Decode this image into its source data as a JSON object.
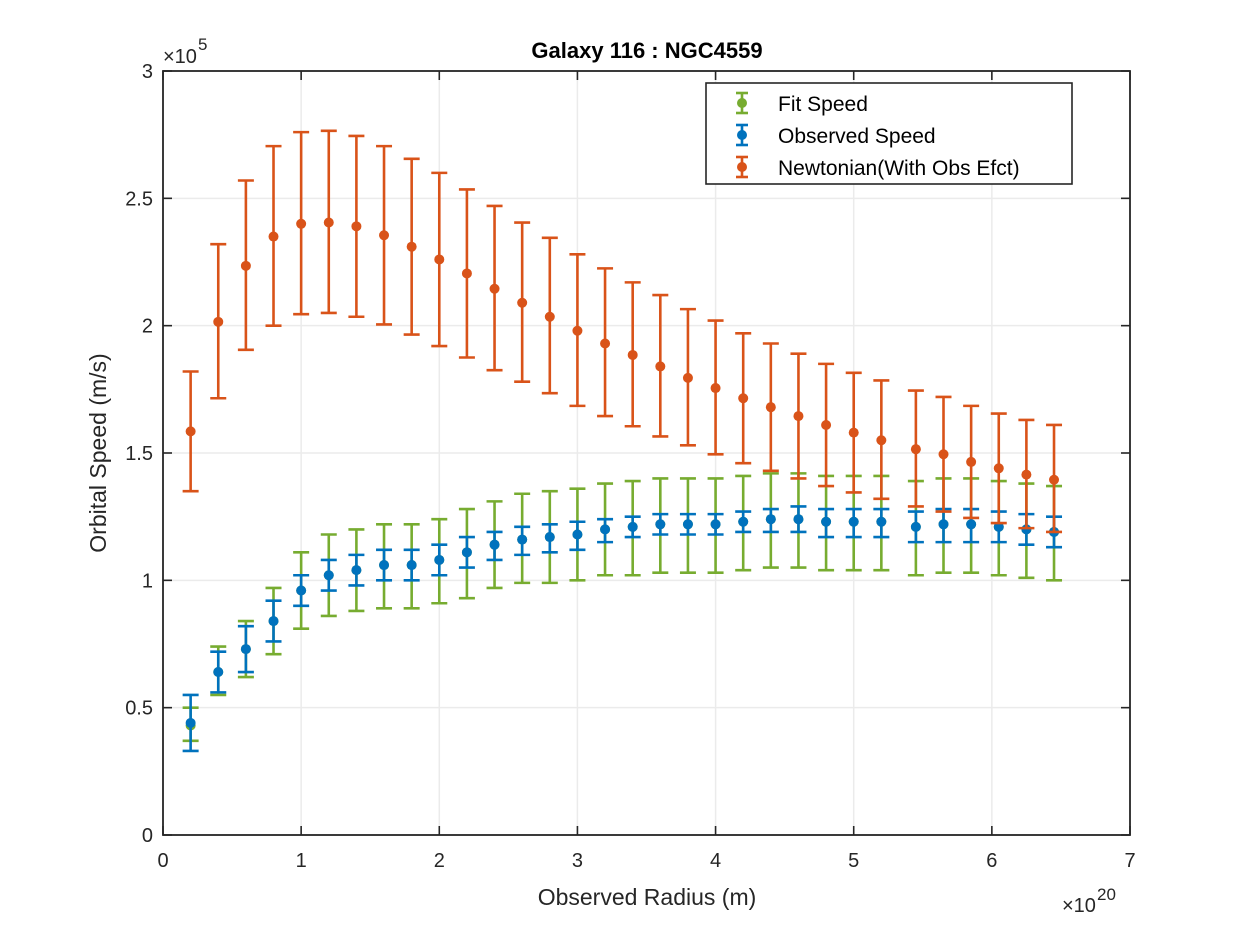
{
  "chart_data": {
    "type": "scatter",
    "title": "Galaxy 116 : NGC4559",
    "xlabel": "Observed Radius (m)",
    "ylabel": "Orbital Speed (m/s)",
    "x_exponent_base": "×10",
    "x_exponent_power": "20",
    "y_exponent_base": "×10",
    "y_exponent_power": "5",
    "xlim": [
      0,
      7
    ],
    "ylim": [
      0,
      3
    ],
    "x_ticks": [
      "0",
      "1",
      "2",
      "3",
      "4",
      "5",
      "6",
      "7"
    ],
    "y_ticks": [
      "0",
      "0.5",
      "1",
      "1.5",
      "2",
      "2.5",
      "3"
    ],
    "grid": true,
    "legend_position": "top-right",
    "x": [
      0.2,
      0.4,
      0.6,
      0.8,
      1.0,
      1.2,
      1.4,
      1.6,
      1.8,
      2.0,
      2.2,
      2.4,
      2.6,
      2.8,
      3.0,
      3.2,
      3.4,
      3.6,
      3.8,
      4.0,
      4.2,
      4.4,
      4.6,
      4.8,
      5.0,
      5.2,
      5.45,
      5.65,
      5.85,
      6.05,
      6.25,
      6.45
    ],
    "series": [
      {
        "name": "Fit Speed",
        "color": "#77AC30",
        "values": [
          0.43,
          0.64,
          0.73,
          0.84,
          0.96,
          1.02,
          1.04,
          1.06,
          1.06,
          1.08,
          1.11,
          1.14,
          1.16,
          1.17,
          1.18,
          1.2,
          1.21,
          1.22,
          1.22,
          1.22,
          1.23,
          1.24,
          1.24,
          1.23,
          1.23,
          1.23,
          1.21,
          1.22,
          1.22,
          1.21,
          1.2,
          1.19
        ],
        "lower": [
          0.37,
          0.55,
          0.62,
          0.71,
          0.81,
          0.86,
          0.88,
          0.89,
          0.89,
          0.91,
          0.93,
          0.97,
          0.99,
          0.99,
          1.0,
          1.02,
          1.02,
          1.03,
          1.03,
          1.03,
          1.04,
          1.05,
          1.05,
          1.04,
          1.04,
          1.04,
          1.02,
          1.03,
          1.03,
          1.02,
          1.01,
          1.0
        ],
        "upper": [
          0.5,
          0.74,
          0.84,
          0.97,
          1.11,
          1.18,
          1.2,
          1.22,
          1.22,
          1.24,
          1.28,
          1.31,
          1.34,
          1.35,
          1.36,
          1.38,
          1.39,
          1.4,
          1.4,
          1.4,
          1.41,
          1.42,
          1.42,
          1.41,
          1.41,
          1.41,
          1.39,
          1.4,
          1.4,
          1.39,
          1.38,
          1.37
        ]
      },
      {
        "name": "Observed Speed",
        "color": "#0072BD",
        "values": [
          0.44,
          0.64,
          0.73,
          0.84,
          0.96,
          1.02,
          1.04,
          1.06,
          1.06,
          1.08,
          1.11,
          1.14,
          1.16,
          1.17,
          1.18,
          1.2,
          1.21,
          1.22,
          1.22,
          1.22,
          1.23,
          1.24,
          1.24,
          1.23,
          1.23,
          1.23,
          1.21,
          1.22,
          1.22,
          1.21,
          1.2,
          1.19
        ],
        "lower": [
          0.33,
          0.56,
          0.64,
          0.76,
          0.9,
          0.96,
          0.98,
          1.0,
          1.0,
          1.02,
          1.05,
          1.08,
          1.1,
          1.11,
          1.12,
          1.15,
          1.17,
          1.18,
          1.18,
          1.18,
          1.19,
          1.19,
          1.19,
          1.17,
          1.17,
          1.17,
          1.15,
          1.15,
          1.15,
          1.15,
          1.14,
          1.13
        ],
        "upper": [
          0.55,
          0.72,
          0.82,
          0.92,
          1.02,
          1.08,
          1.1,
          1.12,
          1.12,
          1.14,
          1.17,
          1.19,
          1.21,
          1.22,
          1.23,
          1.24,
          1.25,
          1.26,
          1.26,
          1.26,
          1.27,
          1.28,
          1.29,
          1.28,
          1.28,
          1.28,
          1.27,
          1.28,
          1.28,
          1.27,
          1.26,
          1.25
        ]
      },
      {
        "name": "Newtonian(With Obs Efct)",
        "color": "#D95319",
        "values": [
          1.585,
          2.015,
          2.235,
          2.35,
          2.4,
          2.405,
          2.39,
          2.355,
          2.31,
          2.26,
          2.205,
          2.145,
          2.09,
          2.035,
          1.98,
          1.93,
          1.885,
          1.84,
          1.795,
          1.755,
          1.715,
          1.68,
          1.645,
          1.61,
          1.58,
          1.55,
          1.515,
          1.495,
          1.465,
          1.44,
          1.415,
          1.395
        ],
        "lower": [
          1.35,
          1.715,
          1.905,
          2.0,
          2.045,
          2.05,
          2.035,
          2.005,
          1.965,
          1.92,
          1.875,
          1.825,
          1.78,
          1.735,
          1.685,
          1.645,
          1.605,
          1.565,
          1.53,
          1.495,
          1.46,
          1.43,
          1.4,
          1.37,
          1.345,
          1.32,
          1.29,
          1.27,
          1.245,
          1.225,
          1.205,
          1.19
        ],
        "upper": [
          1.82,
          2.32,
          2.57,
          2.705,
          2.76,
          2.765,
          2.745,
          2.705,
          2.655,
          2.6,
          2.535,
          2.47,
          2.405,
          2.345,
          2.28,
          2.225,
          2.17,
          2.12,
          2.065,
          2.02,
          1.97,
          1.93,
          1.89,
          1.85,
          1.815,
          1.785,
          1.745,
          1.72,
          1.685,
          1.655,
          1.63,
          1.61
        ]
      }
    ]
  }
}
